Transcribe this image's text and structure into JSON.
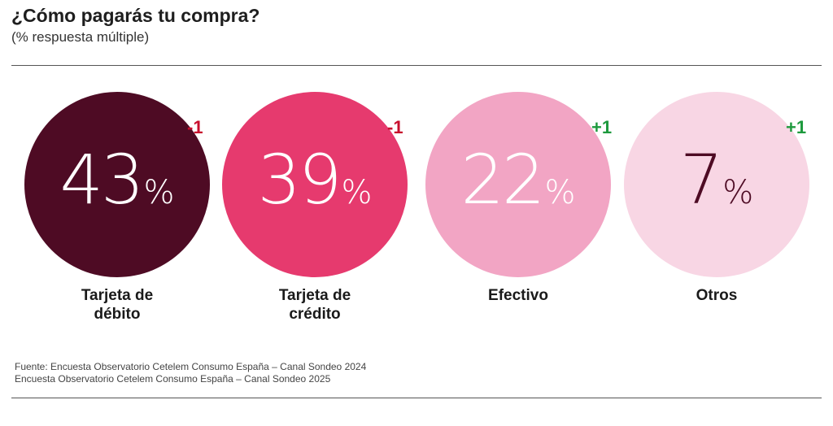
{
  "header": {
    "title": "¿Cómo pagarás tu compra?",
    "subtitle": "(% respuesta múltiple)"
  },
  "chart_data": {
    "type": "bubble",
    "title": "¿Cómo pagarás tu compra?",
    "subtitle": "(% respuesta múltiple)",
    "unit": "%",
    "categories": [
      "Tarjeta de débito",
      "Tarjeta de crédito",
      "Efectivo",
      "Otros"
    ],
    "values": [
      43,
      39,
      22,
      7
    ],
    "changes": [
      "-1",
      "-1",
      "+1",
      "+1"
    ],
    "items": [
      {
        "label_lines": [
          "Tarjeta de",
          "débito"
        ],
        "value": "43",
        "unit": "%",
        "change": "-1",
        "circle_color": "#4e0b24",
        "text_color": "#ffffff",
        "change_color": "#c8102e"
      },
      {
        "label_lines": [
          "Tarjeta de",
          "crédito"
        ],
        "value": "39",
        "unit": "%",
        "change": "-1",
        "circle_color": "#e63a6e",
        "text_color": "#ffffff",
        "change_color": "#c8102e"
      },
      {
        "label_lines": [
          "Efectivo"
        ],
        "value": "22",
        "unit": "%",
        "change": "+1",
        "circle_color": "#f2a5c4",
        "text_color": "#ffffff",
        "change_color": "#1e9a3e"
      },
      {
        "label_lines": [
          "Otros"
        ],
        "value": "7",
        "unit": "%",
        "change": "+1",
        "circle_color": "#f8d6e4",
        "text_color": "#4e0b24",
        "change_color": "#1e9a3e"
      }
    ]
  },
  "footer": {
    "source_lines": [
      "Fuente: Encuesta Observatorio Cetelem Consumo España – Canal Sondeo 2024",
      "Encuesta Observatorio Cetelem Consumo España – Canal Sondeo 2025"
    ]
  }
}
